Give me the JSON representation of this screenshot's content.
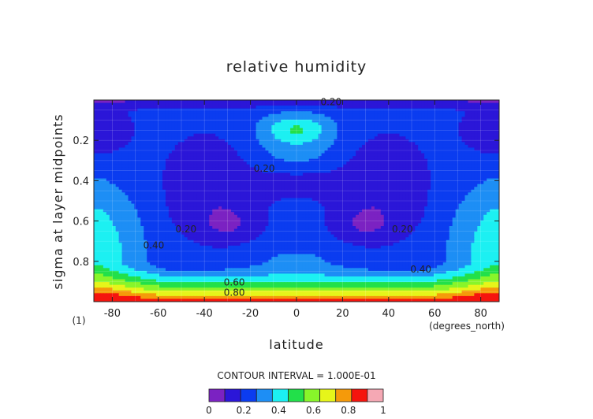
{
  "chart_data": {
    "type": "contour",
    "title": "relative humidity",
    "xlabel": "latitude",
    "ylabel": "sigma at layer midpoints",
    "x_units": "(degrees_north)",
    "y_note": "(1)",
    "xlim": [
      -88,
      88
    ],
    "ylim": [
      1.0,
      0.0
    ],
    "x_ticks": [
      -80,
      -60,
      -40,
      -20,
      0,
      20,
      40,
      60,
      80
    ],
    "x_tick_labels": [
      "-80",
      "-60",
      "-40",
      "-20",
      "0",
      "20",
      "40",
      "60",
      "80"
    ],
    "y_ticks": [
      0.2,
      0.4,
      0.6,
      0.8
    ],
    "y_tick_labels": [
      "0.2",
      "0.4",
      "0.6",
      "0.8"
    ],
    "contour_interval_text": "CONTOUR INTERVAL = 1.000E-01",
    "contour_interval": 0.1,
    "levels": [
      0,
      0.1,
      0.2,
      0.3,
      0.4,
      0.5,
      0.6,
      0.7,
      0.8,
      0.9,
      1.0
    ],
    "level_colors": [
      "#7b22c2",
      "#2b16d8",
      "#0b3cf0",
      "#1d8ef5",
      "#1cf0f2",
      "#22e04a",
      "#88f52a",
      "#e6f51a",
      "#f59a0a",
      "#f5140e",
      "#f5a8b4"
    ],
    "colorbar_tick_labels": [
      "0",
      "0.2",
      "0.4",
      "0.6",
      "0.8",
      "1"
    ],
    "contour_labels": [
      {
        "text": "0.20",
        "lat": 15,
        "sigma": 0.01
      },
      {
        "text": "0.20",
        "lat": -14,
        "sigma": 0.34
      },
      {
        "text": "0.20",
        "lat": -48,
        "sigma": 0.64
      },
      {
        "text": "0.20",
        "lat": 46,
        "sigma": 0.64
      },
      {
        "text": "0.40",
        "lat": -62,
        "sigma": 0.72
      },
      {
        "text": "0.40",
        "lat": 54,
        "sigma": 0.84
      },
      {
        "text": "0.60",
        "lat": -27,
        "sigma": 0.905
      },
      {
        "text": "0.80",
        "lat": -27,
        "sigma": 0.955
      }
    ],
    "grid_lat": [
      -88,
      -80,
      -70,
      -60,
      -50,
      -40,
      -30,
      -20,
      -10,
      0,
      10,
      20,
      30,
      40,
      50,
      60,
      70,
      80,
      88
    ],
    "grid_sigma": [
      0.0,
      0.05,
      0.1,
      0.15,
      0.2,
      0.25,
      0.3,
      0.35,
      0.4,
      0.45,
      0.5,
      0.55,
      0.6,
      0.65,
      0.7,
      0.75,
      0.8,
      0.85,
      0.9,
      0.95,
      1.0
    ]
  }
}
